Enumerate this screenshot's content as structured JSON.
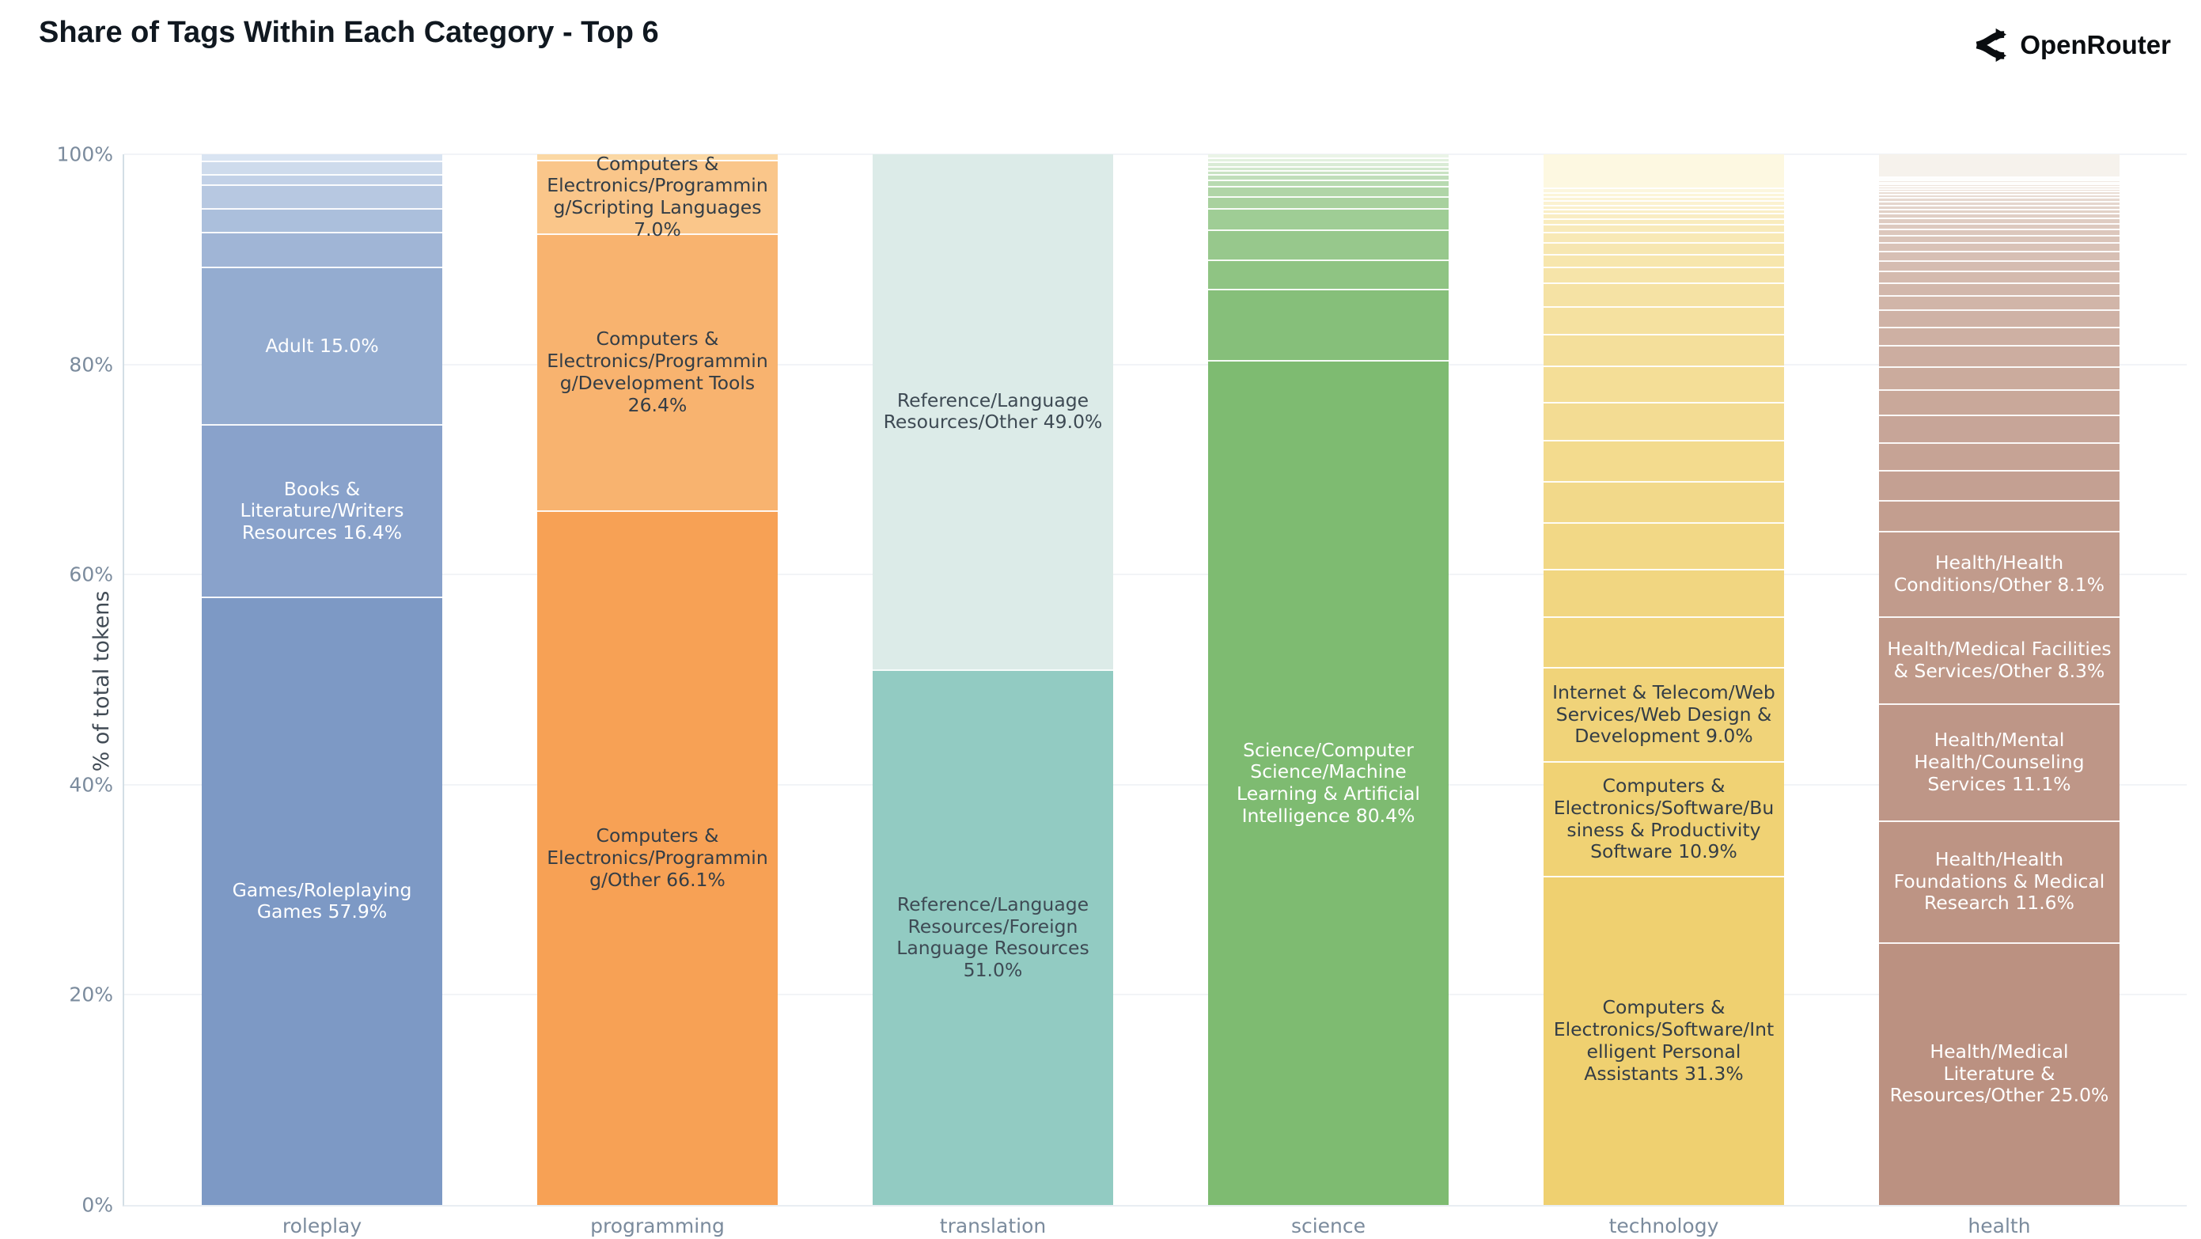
{
  "header": {
    "title": "Share of Tags Within Each Category - Top 6",
    "brand": "OpenRouter"
  },
  "colors": {
    "axis_line": "#d3dee5",
    "grid_line": "#f2f4f7",
    "tick_text": "#7b8b9d",
    "title_text": "#101820",
    "y_title_text": "#414b55"
  },
  "chart_data": {
    "type": "bar",
    "stacked": true,
    "units": "percent",
    "title": "Share of Tags Within Each Category - Top 6",
    "xlabel": "",
    "ylabel": "% of total tokens",
    "ylim": [
      0,
      100
    ],
    "grid": true,
    "y_ticks": [
      "0%",
      "20%",
      "40%",
      "60%",
      "80%",
      "100%"
    ],
    "categories": [
      "roleplay",
      "programming",
      "translation",
      "science",
      "technology",
      "health"
    ],
    "bars": [
      {
        "category": "roleplay",
        "base_color": "#7d99c5",
        "light_color": "#d9e4f2",
        "label_text_color": "#ffffff",
        "segments": [
          {
            "tag": "",
            "value": 0.6
          },
          {
            "tag": "",
            "value": 1.3
          },
          {
            "tag": "",
            "value": 1.0
          },
          {
            "tag": "",
            "value": 2.2
          },
          {
            "tag": "",
            "value": 2.3
          },
          {
            "tag": "",
            "value": 3.3
          },
          {
            "tag": "Adult",
            "value": 15.0,
            "label": "Adult 15.0%"
          },
          {
            "tag": "Books & Literature/Writers Resources",
            "value": 16.4,
            "label": "Books & Literature/Writers Resources 16.4%"
          },
          {
            "tag": "Games/Roleplaying Games",
            "value": 57.9,
            "label": "Games/Roleplaying Games 57.9%"
          }
        ]
      },
      {
        "category": "programming",
        "base_color": "#f7a155",
        "light_color": "#fbd8a4",
        "label_text_color": "#333d46",
        "segments": [
          {
            "tag": "",
            "value": 0.5
          },
          {
            "tag": "Computers & Electronics/Programming/Scripting Languages",
            "value": 7.0,
            "label": "Computers & Electronics/Programming/Scripting Languages 7.0%"
          },
          {
            "tag": "Computers & Electronics/Programming/Development Tools",
            "value": 26.4,
            "label": "Computers & Electronics/Programming/Development Tools 26.4%"
          },
          {
            "tag": "Computers & Electronics/Programming/Other",
            "value": 66.1,
            "label": "Computers & Electronics/Programming/Other 66.1%"
          }
        ]
      },
      {
        "category": "translation",
        "base_color": "#92cbc2",
        "light_color": "#dcebe8",
        "label_text_color": "#3e4a54",
        "segments": [
          {
            "tag": "Reference/Language Resources/Other",
            "value": 49.0,
            "label": "Reference/Language Resources/Other 49.0%"
          },
          {
            "tag": "Reference/Language Resources/Foreign Language Resources",
            "value": 51.0,
            "label": "Reference/Language Resources/Foreign Language Resources 51.0%"
          }
        ]
      },
      {
        "category": "science",
        "base_color": "#7ebb71",
        "light_color": "#eaf4e7",
        "label_text_color": "#ffffff",
        "segments": [
          {
            "tag": "",
            "value": 0.3
          },
          {
            "tag": "",
            "value": 0.4
          },
          {
            "tag": "",
            "value": 0.4
          },
          {
            "tag": "",
            "value": 0.4
          },
          {
            "tag": "",
            "value": 0.4
          },
          {
            "tag": "",
            "value": 0.5
          },
          {
            "tag": "",
            "value": 0.6
          },
          {
            "tag": "",
            "value": 1.0
          },
          {
            "tag": "",
            "value": 1.1
          },
          {
            "tag": "",
            "value": 2.1
          },
          {
            "tag": "",
            "value": 2.8
          },
          {
            "tag": "",
            "value": 2.8
          },
          {
            "tag": "",
            "value": 6.8
          },
          {
            "tag": "Science/Computer Science/Machine Learning & Artificial Intelligence",
            "value": 80.4,
            "label": "Science/Computer Science/Machine Learning & Artificial Intelligence 80.4%"
          }
        ]
      },
      {
        "category": "technology",
        "base_color": "#efd070",
        "light_color": "#fdf8e1",
        "label_text_color": "#333d46",
        "segments": [
          {
            "tag": "",
            "value": 3.2
          },
          {
            "tag": "",
            "value": 0.4
          },
          {
            "tag": "",
            "value": 0.4
          },
          {
            "tag": "",
            "value": 0.4
          },
          {
            "tag": "",
            "value": 0.4
          },
          {
            "tag": "",
            "value": 0.4
          },
          {
            "tag": "",
            "value": 0.4
          },
          {
            "tag": "",
            "value": 0.5
          },
          {
            "tag": "",
            "value": 0.5
          },
          {
            "tag": "",
            "value": 0.8
          },
          {
            "tag": "",
            "value": 1.0
          },
          {
            "tag": "",
            "value": 1.1
          },
          {
            "tag": "",
            "value": 1.2
          },
          {
            "tag": "",
            "value": 1.5
          },
          {
            "tag": "",
            "value": 2.3
          },
          {
            "tag": "",
            "value": 2.6
          },
          {
            "tag": "",
            "value": 3.0
          },
          {
            "tag": "",
            "value": 3.5
          },
          {
            "tag": "",
            "value": 3.6
          },
          {
            "tag": "",
            "value": 3.9
          },
          {
            "tag": "",
            "value": 3.9
          },
          {
            "tag": "",
            "value": 4.5
          },
          {
            "tag": "",
            "value": 4.5
          },
          {
            "tag": "",
            "value": 4.8
          },
          {
            "tag": "Internet & Telecom/Web Services/Web Design & Development",
            "value": 9.0,
            "label": "Internet & Telecom/Web Services/Web Design & Development 9.0%"
          },
          {
            "tag": "Computers & Electronics/Software/Business & Productivity Software",
            "value": 10.9,
            "label": "Computers & Electronics/Software/Business & Productivity Software 10.9%"
          },
          {
            "tag": "Computers & Electronics/Software/Intelligent Personal Assistants",
            "value": 31.3,
            "label": "Computers & Electronics/Software/Intelligent Personal Assistants 31.3%"
          }
        ]
      },
      {
        "category": "health",
        "base_color": "#bb9181",
        "light_color": "#f6f2ec",
        "label_text_color": "#ffffff",
        "segments": [
          {
            "tag": "",
            "value": 2.1
          },
          {
            "tag": "",
            "value": 0.15
          },
          {
            "tag": "",
            "value": 0.15
          },
          {
            "tag": "",
            "value": 0.2
          },
          {
            "tag": "",
            "value": 0.2
          },
          {
            "tag": "",
            "value": 0.2
          },
          {
            "tag": "",
            "value": 0.25
          },
          {
            "tag": "",
            "value": 0.25
          },
          {
            "tag": "",
            "value": 0.3
          },
          {
            "tag": "",
            "value": 0.3
          },
          {
            "tag": "",
            "value": 0.35
          },
          {
            "tag": "",
            "value": 0.35
          },
          {
            "tag": "",
            "value": 0.4
          },
          {
            "tag": "",
            "value": 0.4
          },
          {
            "tag": "",
            "value": 0.45
          },
          {
            "tag": "",
            "value": 0.5
          },
          {
            "tag": "",
            "value": 0.55
          },
          {
            "tag": "",
            "value": 0.6
          },
          {
            "tag": "",
            "value": 0.7
          },
          {
            "tag": "",
            "value": 0.8
          },
          {
            "tag": "",
            "value": 0.9
          },
          {
            "tag": "",
            "value": 1.0
          },
          {
            "tag": "",
            "value": 1.1
          },
          {
            "tag": "",
            "value": 1.2
          },
          {
            "tag": "",
            "value": 1.4
          },
          {
            "tag": "",
            "value": 1.6
          },
          {
            "tag": "",
            "value": 1.8
          },
          {
            "tag": "",
            "value": 2.0
          },
          {
            "tag": "",
            "value": 2.2
          },
          {
            "tag": "",
            "value": 2.4
          },
          {
            "tag": "",
            "value": 2.6
          },
          {
            "tag": "",
            "value": 2.7
          },
          {
            "tag": "",
            "value": 2.8
          },
          {
            "tag": "",
            "value": 3.0
          },
          {
            "tag": "Health/Health Conditions/Other",
            "value": 8.1,
            "label": "Health/Health Conditions/Other 8.1%"
          },
          {
            "tag": "Health/Medical Facilities & Services/Other",
            "value": 8.3,
            "label": "Health/Medical Facilities & Services/Other 8.3%"
          },
          {
            "tag": "Health/Mental Health/Counseling Services",
            "value": 11.1,
            "label": "Health/Mental Health/Counseling Services 11.1%"
          },
          {
            "tag": "Health/Health Foundations & Medical Research",
            "value": 11.6,
            "label": "Health/Health Foundations & Medical Research 11.6%"
          },
          {
            "tag": "Health/Medical Literature & Resources/Other",
            "value": 25.0,
            "label": "Health/Medical Literature & Resources/Other 25.0%"
          }
        ]
      }
    ]
  }
}
